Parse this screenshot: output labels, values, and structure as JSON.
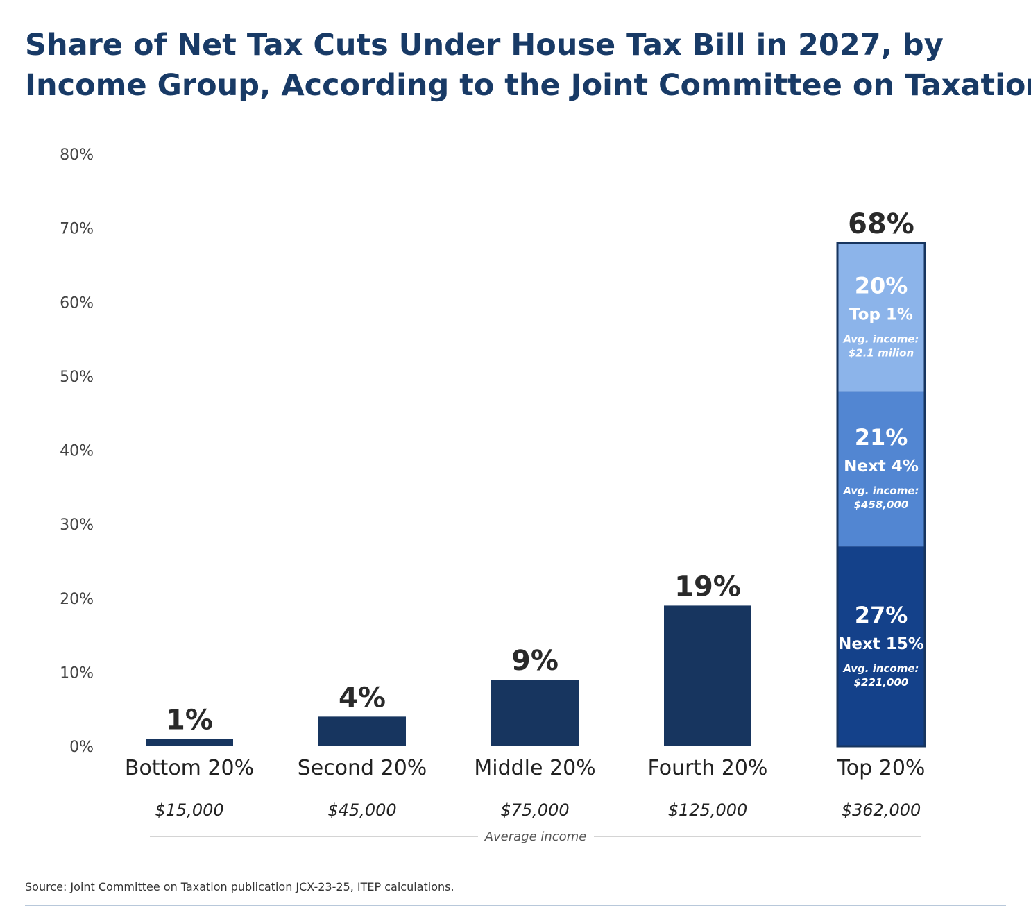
{
  "chart_data": {
    "type": "bar",
    "title": [
      "Share of Net Tax Cuts Under House Tax Bill in 2027, by",
      "Income Group, According to the Joint Committee on Taxation"
    ],
    "ylim": [
      0,
      80
    ],
    "yticks": [
      "0%",
      "10%",
      "20%",
      "30%",
      "40%",
      "50%",
      "60%",
      "70%",
      "80%"
    ],
    "categories": [
      "Bottom 20%",
      "Second 20%",
      "Middle 20%",
      "Fourth 20%",
      "Top 20%"
    ],
    "average_incomes": [
      "$15,000",
      "$45,000",
      "$75,000",
      "$125,000",
      "$362,000"
    ],
    "average_income_label": "Average income",
    "values": [
      1,
      4,
      9,
      19,
      68
    ],
    "value_labels": [
      "1%",
      "4%",
      "9%",
      "19%",
      "68%"
    ],
    "stacked_segments": [
      {
        "value": 27,
        "label": "27%",
        "group": "Next 15%",
        "income_line1": "Avg. income:",
        "income_line2": "$221,000",
        "color": "#14418a"
      },
      {
        "value": 21,
        "label": "21%",
        "group": "Next 4%",
        "income_line1": "Avg. income:",
        "income_line2": "$458,000",
        "color": "#5286d2"
      },
      {
        "value": 20,
        "label": "20%",
        "group": "Top 1%",
        "income_line1": "Avg. income:",
        "income_line2": "$2.1 milion",
        "color": "#8cb4ea"
      }
    ],
    "colors": {
      "bar": "#17355f",
      "outline": "#17355f"
    },
    "grid": false,
    "legend": "none"
  },
  "source": "Source: Joint Committee on Taxation publication JCX-23-25, ITEP calculations."
}
